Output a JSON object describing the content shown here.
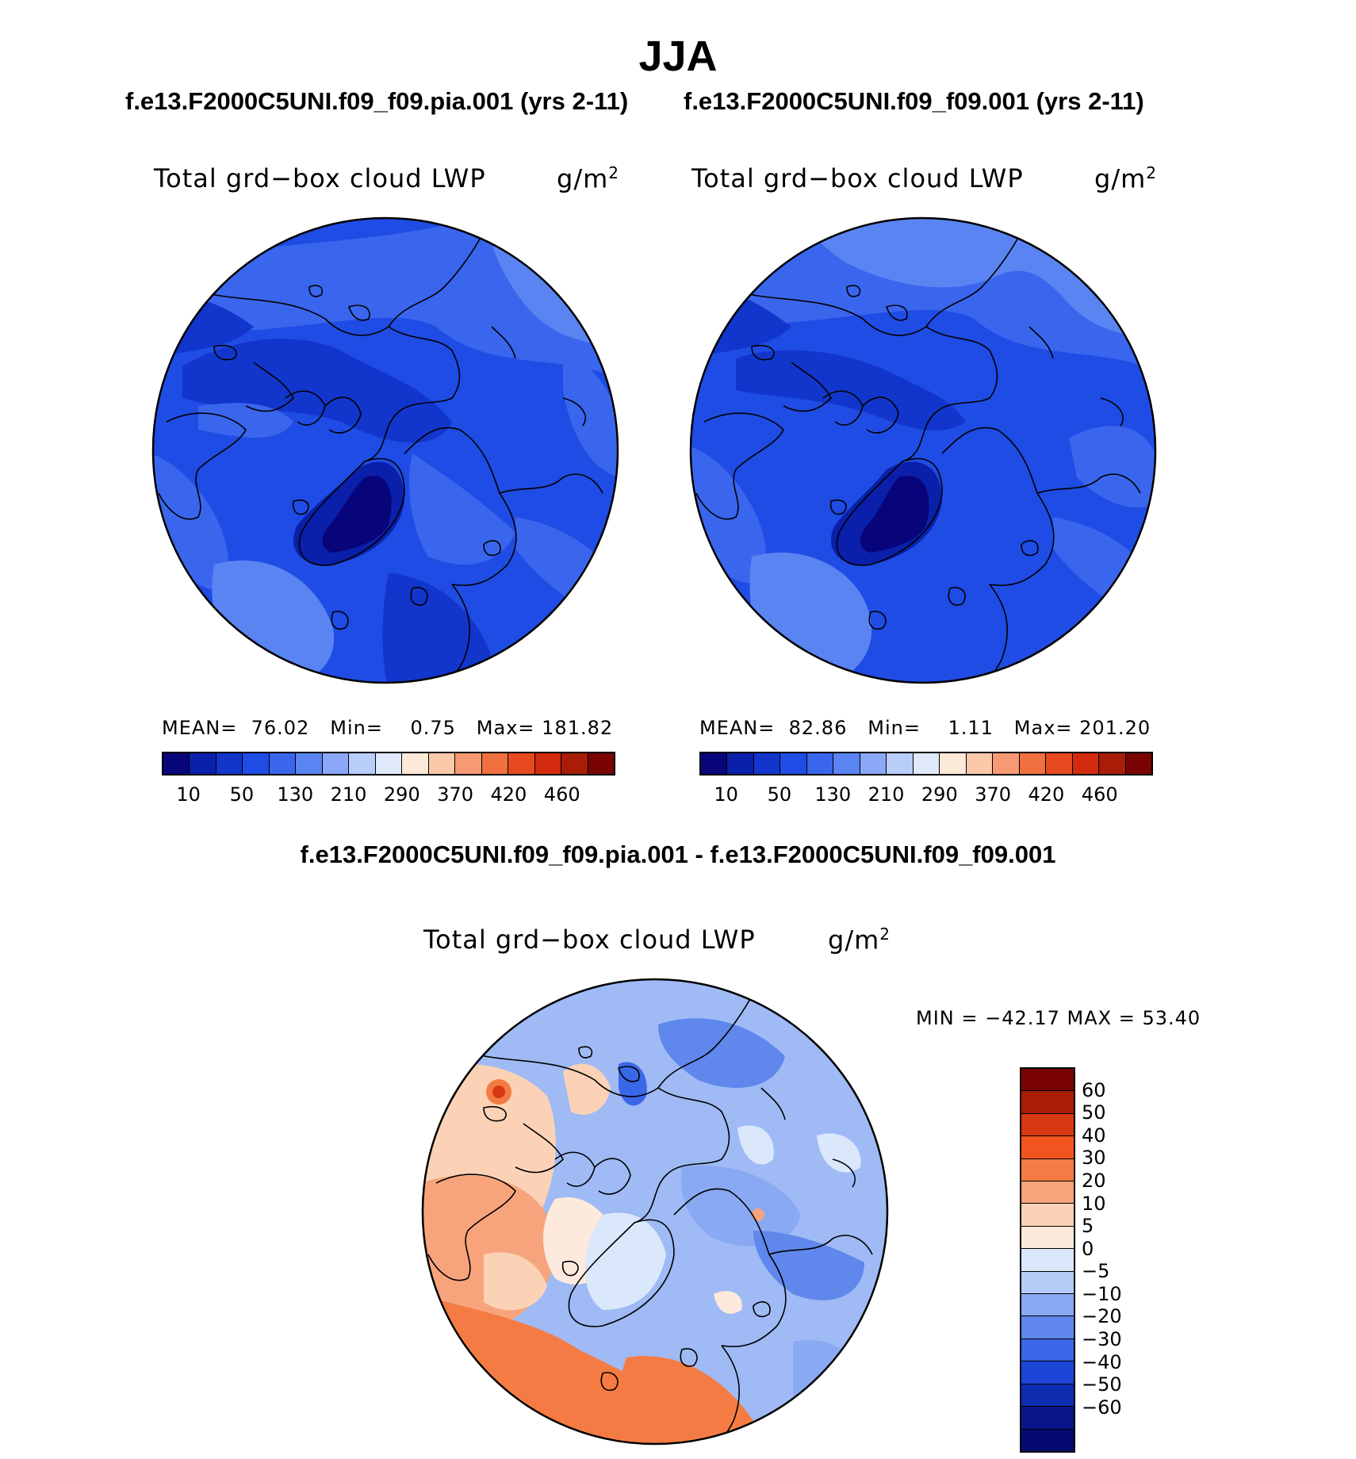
{
  "figure": {
    "season": "JJA"
  },
  "panels": [
    {
      "case_title": "f.e13.F2000C5UNI.f09_f09.pia.001 (yrs 2-11)",
      "variable": "Total grd−box cloud LWP",
      "units": "g/m",
      "units_sup": "2",
      "stats": {
        "mean_label": "MEAN=",
        "mean": "76.02",
        "min_label": "Min=",
        "min": "0.75",
        "max_label": "Max=",
        "max": "181.82"
      }
    },
    {
      "case_title": "f.e13.F2000C5UNI.f09_f09.001 (yrs 2-11)",
      "variable": "Total grd−box cloud LWP",
      "units": "g/m",
      "units_sup": "2",
      "stats": {
        "mean_label": "MEAN=",
        "mean": "82.86",
        "min_label": "Min=",
        "min": "1.11",
        "max_label": "Max=",
        "max": "201.20"
      }
    }
  ],
  "difference": {
    "title": "f.e13.F2000C5UNI.f09_f09.pia.001 - f.e13.F2000C5UNI.f09_f09.001",
    "variable": "Total grd−box cloud LWP",
    "units": "g/m",
    "units_sup": "2",
    "minmax": "MIN = −42.17 MAX =  53.40"
  },
  "chart_data": [
    {
      "type": "heatmap",
      "projection": "north-polar-stereographic",
      "title": "Total grd−box cloud LWP",
      "units": "g/m2",
      "mean": 76.02,
      "min": 0.75,
      "max": 181.82,
      "colorbar_ticks": [
        "10",
        "50",
        "130",
        "210",
        "290",
        "370",
        "420",
        "460"
      ],
      "colorbar_colors": [
        "#08047a",
        "#0a20aa",
        "#1236cc",
        "#1f4ce4",
        "#3a66ee",
        "#5a84f2",
        "#8aa8f7",
        "#b8cdf9",
        "#dfe9fb",
        "#fce9d8",
        "#fbc8aa",
        "#f79a74",
        "#f0703f",
        "#e84a1f",
        "#d22b0d",
        "#a81c08",
        "#7a0404"
      ]
    },
    {
      "type": "heatmap",
      "projection": "north-polar-stereographic",
      "title": "Total grd−box cloud LWP",
      "units": "g/m2",
      "mean": 82.86,
      "min": 1.11,
      "max": 201.2,
      "colorbar_ticks": [
        "10",
        "50",
        "130",
        "210",
        "290",
        "370",
        "420",
        "460"
      ],
      "colorbar_colors": [
        "#08047a",
        "#0a20aa",
        "#1236cc",
        "#1f4ce4",
        "#3a66ee",
        "#5a84f2",
        "#8aa8f7",
        "#b8cdf9",
        "#dfe9fb",
        "#fce9d8",
        "#fbc8aa",
        "#f79a74",
        "#f0703f",
        "#e84a1f",
        "#d22b0d",
        "#a81c08",
        "#7a0404"
      ]
    },
    {
      "type": "heatmap",
      "projection": "north-polar-stereographic",
      "title": "Total grd−box cloud LWP",
      "units": "g/m2",
      "min": -42.17,
      "max": 53.4,
      "colorbar_ticks": [
        "60",
        "50",
        "40",
        "30",
        "20",
        "10",
        "5",
        "0",
        "−5",
        "−10",
        "−20",
        "−30",
        "−40",
        "−50",
        "−60"
      ],
      "colorbar_colors": [
        "#7a0404",
        "#a81c08",
        "#d83812",
        "#f2541f",
        "#f47c44",
        "#f7a47c",
        "#fbd2b6",
        "#fdeadc",
        "#dbe7fb",
        "#b5ccf7",
        "#89a9f2",
        "#5f87ec",
        "#3a66e8",
        "#1d45d8",
        "#0e2cb0",
        "#09168a",
        "#050a70"
      ]
    }
  ]
}
